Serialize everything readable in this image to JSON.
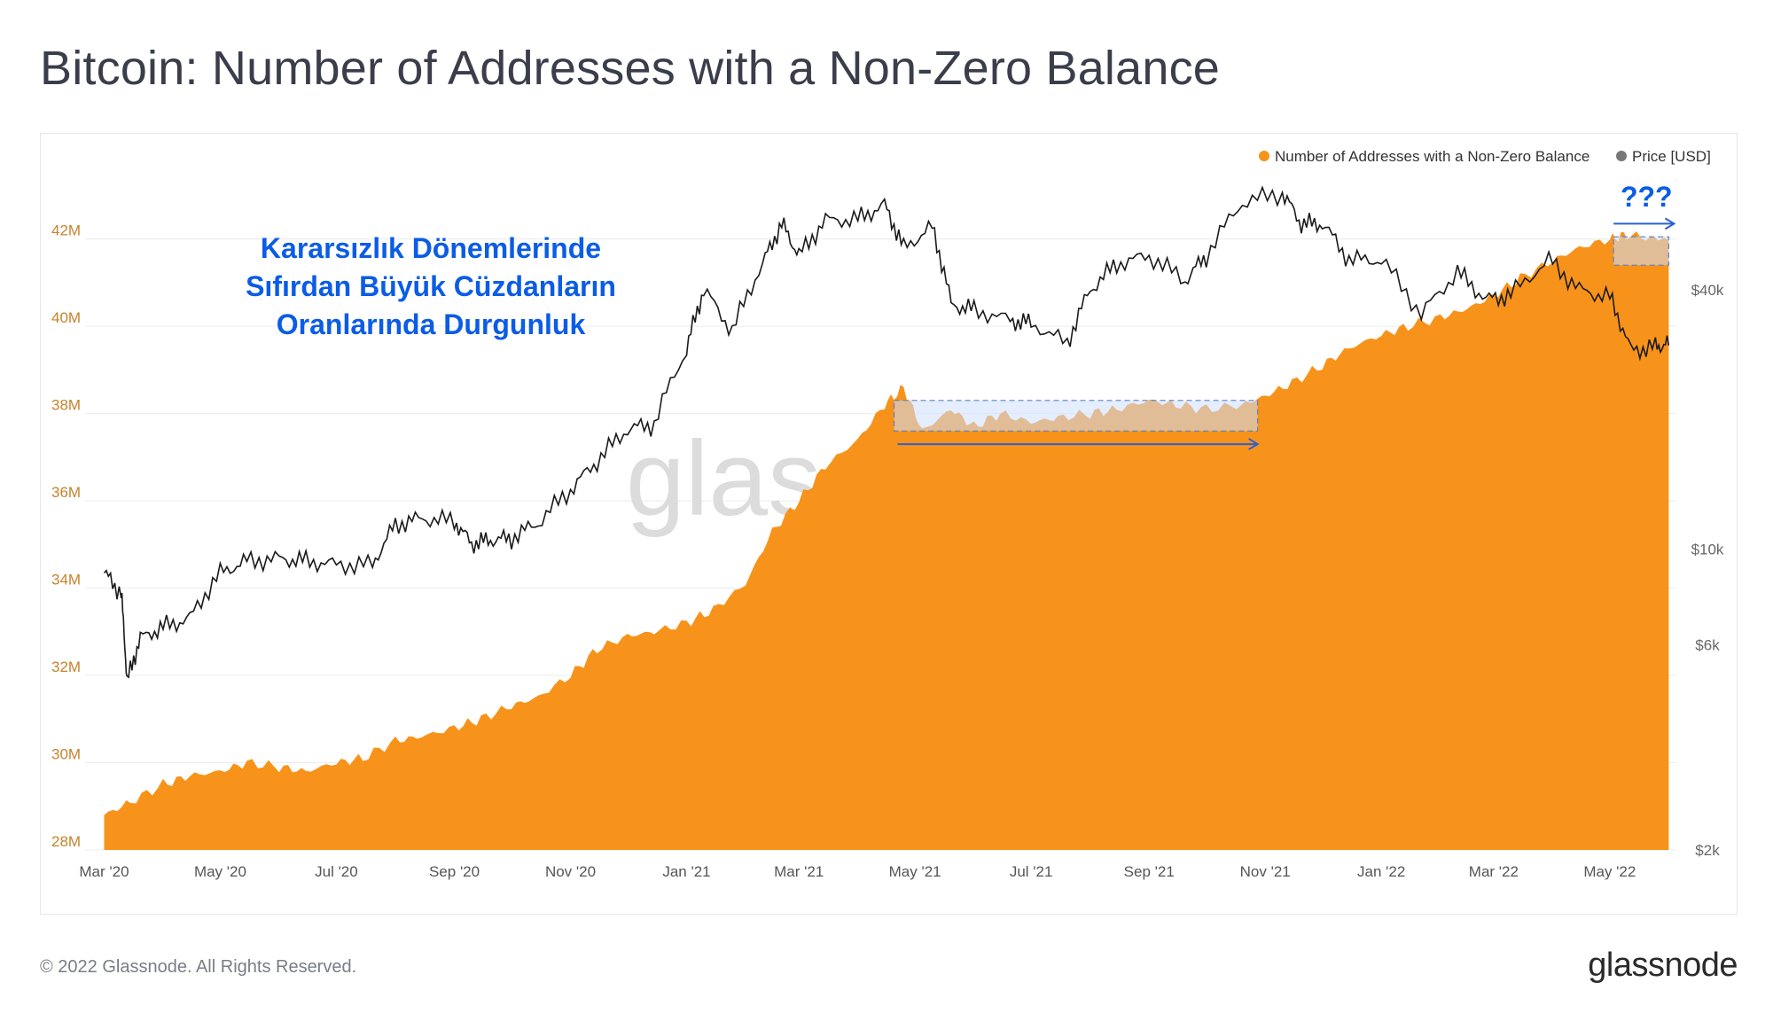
{
  "header": {
    "title": "Bitcoin: Number of Addresses with a Non-Zero Balance"
  },
  "footer": {
    "copyright": "© 2022 Glassnode. All Rights Reserved.",
    "logo": "glassnode"
  },
  "watermark": "glassnode",
  "colors": {
    "addresses": "#f7931a",
    "price": "#1a1a1a",
    "annotation_text": "#0b5ce6",
    "highlight_fill": "#cfe0ff",
    "axis_left": "#c7832a",
    "axis_right": "#666666"
  },
  "annotations": {
    "text_lines": [
      "Kararsızlık Dönemlerinde",
      "Sıfırdan Büyük Cüzdanların",
      "Oranlarında Durgunluk"
    ],
    "question": "???"
  },
  "chart_data": {
    "type": "area",
    "title": "Bitcoin: Number of Addresses with a Non-Zero Balance",
    "x_ticks": [
      "Mar '20",
      "May '20",
      "Jul '20",
      "Sep '20",
      "Nov '20",
      "Jan '21",
      "Mar '21",
      "May '21",
      "Jul '21",
      "Sep '21",
      "Nov '21",
      "Jan '22",
      "Mar '22",
      "May '22"
    ],
    "y_left_ticks": [
      "28M",
      "30M",
      "32M",
      "34M",
      "36M",
      "38M",
      "40M",
      "42M"
    ],
    "y_left_range": [
      28,
      43.8
    ],
    "y_right_ticks": [
      "$2k",
      "$6k",
      "$10k",
      "$40k"
    ],
    "y_right_scale": "log",
    "legend": {
      "position": "top-right",
      "items": [
        "Number of Addresses with a Non-Zero Balance",
        "Price [USD]"
      ]
    },
    "series": [
      {
        "name": "Number of Addresses with a Non-Zero Balance",
        "unit": "M",
        "points": [
          [
            "2020-03-01",
            28.8
          ],
          [
            "2020-03-15",
            29.1
          ],
          [
            "2020-04-01",
            29.5
          ],
          [
            "2020-04-15",
            29.7
          ],
          [
            "2020-05-01",
            29.8
          ],
          [
            "2020-05-15",
            30.0
          ],
          [
            "2020-06-01",
            29.9
          ],
          [
            "2020-06-15",
            29.8
          ],
          [
            "2020-07-01",
            30.0
          ],
          [
            "2020-07-15",
            30.1
          ],
          [
            "2020-08-01",
            30.5
          ],
          [
            "2020-08-15",
            30.6
          ],
          [
            "2020-09-01",
            30.8
          ],
          [
            "2020-09-15",
            31.0
          ],
          [
            "2020-10-01",
            31.3
          ],
          [
            "2020-10-15",
            31.5
          ],
          [
            "2020-11-01",
            32.0
          ],
          [
            "2020-11-15",
            32.6
          ],
          [
            "2020-12-01",
            32.9
          ],
          [
            "2020-12-15",
            33.0
          ],
          [
            "2021-01-01",
            33.2
          ],
          [
            "2021-01-15",
            33.5
          ],
          [
            "2021-02-01",
            34.1
          ],
          [
            "2021-02-15",
            35.3
          ],
          [
            "2021-03-01",
            36.0
          ],
          [
            "2021-03-15",
            36.8
          ],
          [
            "2021-04-01",
            37.4
          ],
          [
            "2021-04-15",
            38.2
          ],
          [
            "2021-04-25",
            38.6
          ],
          [
            "2021-05-05",
            37.6
          ],
          [
            "2021-05-20",
            38.1
          ],
          [
            "2021-06-01",
            37.7
          ],
          [
            "2021-06-15",
            38.0
          ],
          [
            "2021-07-01",
            37.8
          ],
          [
            "2021-07-15",
            37.9
          ],
          [
            "2021-08-01",
            38.0
          ],
          [
            "2021-08-15",
            38.1
          ],
          [
            "2021-09-01",
            38.3
          ],
          [
            "2021-09-15",
            38.2
          ],
          [
            "2021-10-01",
            38.1
          ],
          [
            "2021-10-20",
            38.2
          ],
          [
            "2021-11-01",
            38.4
          ],
          [
            "2021-11-15",
            38.7
          ],
          [
            "2021-12-01",
            39.1
          ],
          [
            "2021-12-15",
            39.5
          ],
          [
            "2022-01-01",
            39.8
          ],
          [
            "2022-01-15",
            40.0
          ],
          [
            "2022-02-01",
            40.2
          ],
          [
            "2022-02-15",
            40.4
          ],
          [
            "2022-03-01",
            40.7
          ],
          [
            "2022-03-15",
            41.1
          ],
          [
            "2022-04-01",
            41.5
          ],
          [
            "2022-04-15",
            41.8
          ],
          [
            "2022-05-01",
            42.0
          ],
          [
            "2022-05-10",
            42.1
          ],
          [
            "2022-05-25",
            42.0
          ],
          [
            "2022-06-01",
            42.0
          ]
        ]
      },
      {
        "name": "Price [USD]",
        "unit": "USD",
        "points": [
          [
            "2020-03-01",
            8800
          ],
          [
            "2020-03-10",
            7900
          ],
          [
            "2020-03-13",
            4900
          ],
          [
            "2020-03-20",
            6200
          ],
          [
            "2020-04-01",
            6600
          ],
          [
            "2020-04-15",
            6900
          ],
          [
            "2020-05-01",
            8800
          ],
          [
            "2020-05-15",
            9400
          ],
          [
            "2020-06-01",
            9500
          ],
          [
            "2020-06-15",
            9400
          ],
          [
            "2020-07-01",
            9200
          ],
          [
            "2020-07-20",
            9200
          ],
          [
            "2020-08-01",
            11400
          ],
          [
            "2020-08-15",
            11800
          ],
          [
            "2020-09-01",
            11600
          ],
          [
            "2020-09-10",
            10300
          ],
          [
            "2020-09-20",
            10500
          ],
          [
            "2020-10-01",
            10600
          ],
          [
            "2020-10-15",
            11500
          ],
          [
            "2020-11-01",
            13700
          ],
          [
            "2020-11-15",
            16000
          ],
          [
            "2020-12-01",
            19000
          ],
          [
            "2020-12-15",
            19500
          ],
          [
            "2021-01-01",
            29000
          ],
          [
            "2021-01-10",
            40000
          ],
          [
            "2021-01-25",
            32000
          ],
          [
            "2021-02-10",
            46000
          ],
          [
            "2021-02-20",
            57000
          ],
          [
            "2021-03-01",
            48000
          ],
          [
            "2021-03-15",
            58000
          ],
          [
            "2021-04-01",
            58500
          ],
          [
            "2021-04-15",
            63000
          ],
          [
            "2021-04-25",
            50000
          ],
          [
            "2021-05-10",
            56000
          ],
          [
            "2021-05-20",
            37000
          ],
          [
            "2021-06-01",
            36000
          ],
          [
            "2021-06-20",
            34000
          ],
          [
            "2021-07-01",
            33500
          ],
          [
            "2021-07-20",
            30000
          ],
          [
            "2021-08-01",
            40000
          ],
          [
            "2021-08-15",
            46000
          ],
          [
            "2021-09-01",
            48000
          ],
          [
            "2021-09-20",
            42000
          ],
          [
            "2021-10-01",
            48000
          ],
          [
            "2021-10-20",
            64000
          ],
          [
            "2021-11-10",
            67000
          ],
          [
            "2021-11-20",
            57000
          ],
          [
            "2021-12-01",
            57000
          ],
          [
            "2021-12-15",
            47000
          ],
          [
            "2022-01-01",
            47000
          ],
          [
            "2022-01-22",
            35000
          ],
          [
            "2022-02-10",
            44000
          ],
          [
            "2022-02-25",
            38000
          ],
          [
            "2022-03-10",
            39000
          ],
          [
            "2022-03-30",
            47000
          ],
          [
            "2022-04-15",
            40000
          ],
          [
            "2022-05-01",
            38500
          ],
          [
            "2022-05-12",
            29000
          ],
          [
            "2022-05-25",
            29500
          ],
          [
            "2022-06-01",
            30000
          ]
        ]
      }
    ]
  }
}
